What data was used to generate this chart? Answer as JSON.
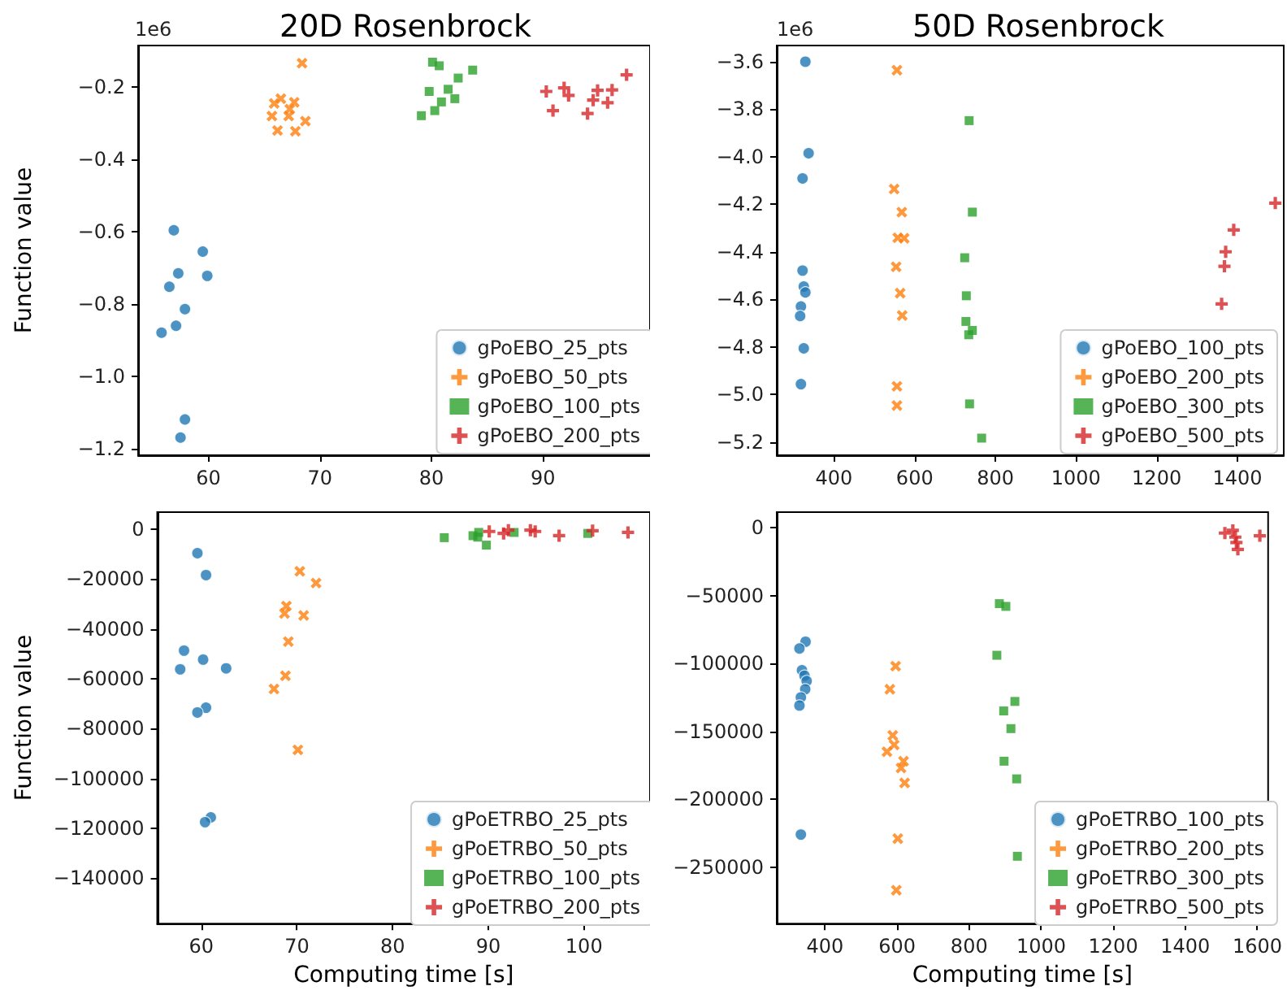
{
  "chart_data": [
    {
      "type": "scatter",
      "title": "20D Rosenbrock",
      "ylabel": "Function value",
      "annotations": [
        "1e6"
      ],
      "grid": false,
      "legend": "bottom right",
      "xlim": [
        53.7,
        99.6
      ],
      "xticks": [
        60,
        70,
        80,
        90
      ],
      "ylim": [
        -1.219,
        -0.086
      ],
      "yticks": [
        {
          "value": -1.2,
          "label": "−1.2"
        },
        {
          "value": -1.0,
          "label": "−1.0"
        },
        {
          "value": -0.8,
          "label": "−0.8"
        },
        {
          "value": -0.6,
          "label": "−0.6"
        },
        {
          "value": -0.4,
          "label": "−0.4"
        },
        {
          "value": -0.2,
          "label": "−0.2"
        }
      ],
      "series": [
        {
          "name": "gPoEBO_25_pts",
          "color": "#1f77b4",
          "marker": "circle",
          "x": [
            56.9,
            59.5,
            57.3,
            59.9,
            56.5,
            57.9,
            57.1,
            55.8,
            57.9,
            57.5
          ],
          "values": [
            -0.597,
            -0.656,
            -0.716,
            -0.723,
            -0.753,
            -0.815,
            -0.861,
            -0.88,
            -1.12,
            -1.17
          ]
        },
        {
          "name": "gPoEBO_50_pts",
          "color": "#ff7f0e",
          "marker": "x",
          "x": [
            68.4,
            66.5,
            65.9,
            67.7,
            67.3,
            65.7,
            67.2,
            68.7,
            66.2,
            67.8
          ],
          "values": [
            -0.135,
            -0.233,
            -0.246,
            -0.243,
            -0.262,
            -0.281,
            -0.281,
            -0.295,
            -0.321,
            -0.323
          ]
        },
        {
          "name": "gPoEBO_100_pts",
          "color": "#2ca02c",
          "marker": "square",
          "x": [
            80.1,
            80.7,
            83.7,
            82.4,
            79.8,
            81.5,
            82.1,
            80.9,
            80.3,
            79.1
          ],
          "values": [
            -0.132,
            -0.142,
            -0.154,
            -0.176,
            -0.213,
            -0.207,
            -0.233,
            -0.242,
            -0.266,
            -0.28
          ]
        },
        {
          "name": "gPoEBO_200_pts",
          "color": "#d62728",
          "marker": "cross",
          "x": [
            97.5,
            90.3,
            91.9,
            92.3,
            94.9,
            96.2,
            94.5,
            95.8,
            90.9,
            94.0
          ],
          "values": [
            -0.167,
            -0.213,
            -0.203,
            -0.224,
            -0.21,
            -0.209,
            -0.237,
            -0.244,
            -0.266,
            -0.274
          ]
        }
      ]
    },
    {
      "type": "scatter",
      "title": "50D Rosenbrock",
      "annotations": [
        "1e6"
      ],
      "grid": false,
      "legend": "bottom right",
      "xlim": [
        258,
        1515
      ],
      "xticks": [
        400,
        600,
        800,
        1000,
        1200,
        1400
      ],
      "ylim": [
        -5.256,
        -3.532
      ],
      "yticks": [
        {
          "value": -5.2,
          "label": "−5.2"
        },
        {
          "value": -5.0,
          "label": "−5.0"
        },
        {
          "value": -4.8,
          "label": "−4.8"
        },
        {
          "value": -4.6,
          "label": "−4.6"
        },
        {
          "value": -4.4,
          "label": "−4.4"
        },
        {
          "value": -4.2,
          "label": "−4.2"
        },
        {
          "value": -4.0,
          "label": "−4.0"
        },
        {
          "value": -3.8,
          "label": "−3.8"
        },
        {
          "value": -3.6,
          "label": "−3.6"
        }
      ],
      "series": [
        {
          "name": "gPoEBO_100_pts",
          "color": "#1f77b4",
          "marker": "circle",
          "x": [
            329,
            337,
            322,
            322,
            325,
            329,
            318,
            316,
            325,
            318
          ],
          "values": [
            -3.6,
            -3.985,
            -4.091,
            -4.479,
            -4.546,
            -4.571,
            -4.63,
            -4.67,
            -4.806,
            -4.957
          ]
        },
        {
          "name": "gPoEBO_200_pts",
          "color": "#ff7f0e",
          "marker": "x",
          "x": [
            556,
            549,
            568,
            558,
            574,
            554,
            564,
            569,
            556,
            556
          ],
          "values": [
            -3.636,
            -4.136,
            -4.233,
            -4.341,
            -4.343,
            -4.463,
            -4.574,
            -4.668,
            -4.966,
            -5.047
          ]
        },
        {
          "name": "gPoEBO_300_pts",
          "color": "#2ca02c",
          "marker": "square",
          "x": [
            735,
            743,
            724,
            728,
            727,
            743,
            734,
            736,
            766
          ],
          "values": [
            -3.848,
            -4.233,
            -4.425,
            -4.585,
            -4.693,
            -4.731,
            -4.749,
            -5.04,
            -5.184
          ]
        },
        {
          "name": "gPoEBO_500_pts",
          "color": "#d62728",
          "marker": "cross",
          "x": [
            1494,
            1391,
            1371,
            1368,
            1361
          ],
          "values": [
            -4.195,
            -4.308,
            -4.4,
            -4.461,
            -4.619
          ]
        }
      ]
    },
    {
      "type": "scatter",
      "xlabel": "Computing time [s]",
      "ylabel": "Function value",
      "grid": false,
      "legend": "bottom right",
      "xlim": [
        55.4,
        106.9
      ],
      "xticks": [
        60,
        70,
        80,
        90,
        100
      ],
      "ylim": [
        -158200,
        6840
      ],
      "yticks": [
        {
          "value": -140000,
          "label": "−140000"
        },
        {
          "value": -120000,
          "label": "−120000"
        },
        {
          "value": -100000,
          "label": "−100000"
        },
        {
          "value": -80000,
          "label": "−80000"
        },
        {
          "value": -60000,
          "label": "−60000"
        },
        {
          "value": -40000,
          "label": "−40000"
        },
        {
          "value": -20000,
          "label": "−20000"
        },
        0
      ],
      "series": [
        {
          "name": "gPoETRBO_25_pts",
          "color": "#1f77b4",
          "marker": "circle",
          "x": [
            59.6,
            60.5,
            58.2,
            60.2,
            62.6,
            57.8,
            60.5,
            59.6,
            61.0,
            60.4
          ],
          "values": [
            -9600,
            -18400,
            -48700,
            -52300,
            -55800,
            -56200,
            -71600,
            -73500,
            -115600,
            -117500
          ]
        },
        {
          "name": "gPoETRBO_50_pts",
          "color": "#ff7f0e",
          "marker": "x",
          "x": [
            70.3,
            72.0,
            68.9,
            68.7,
            70.7,
            69.1,
            68.8,
            67.6,
            70.1
          ],
          "values": [
            -16900,
            -21600,
            -30800,
            -33800,
            -34600,
            -45100,
            -58800,
            -64100,
            -88500
          ]
        },
        {
          "name": "gPoETRBO_100_pts",
          "color": "#2ca02c",
          "marker": "square",
          "x": [
            85.4,
            88.4,
            89.0,
            88.9,
            89.8,
            92.7,
            100.4
          ],
          "values": [
            -3400,
            -2600,
            -1300,
            -3200,
            -6400,
            -1300,
            -1700
          ]
        },
        {
          "name": "gPoETRBO_200_pts",
          "color": "#d62728",
          "marker": "cross",
          "x": [
            90.1,
            91.6,
            94.4,
            94.9,
            97.4,
            100.9,
            104.6,
            92.1
          ],
          "values": [
            -900,
            -1700,
            -400,
            -900,
            -2600,
            -600,
            -1300,
            -400
          ]
        }
      ]
    },
    {
      "type": "scatter",
      "xlabel": "Computing time [s]",
      "grid": false,
      "legend": "bottom right",
      "xlim": [
        266,
        1630
      ],
      "xticks": [
        400,
        600,
        800,
        1000,
        1200,
        1400,
        1600
      ],
      "ylim": [
        -291600,
        11400
      ],
      "yticks": [
        {
          "value": -250000,
          "label": "−250000"
        },
        {
          "value": -200000,
          "label": "−200000"
        },
        {
          "value": -150000,
          "label": "−150000"
        },
        {
          "value": -100000,
          "label": "−100000"
        },
        {
          "value": -50000,
          "label": "−50000"
        },
        0
      ],
      "series": [
        {
          "name": "gPoETRBO_100_pts",
          "color": "#1f77b4",
          "marker": "circle",
          "x": [
            346,
            329,
            336,
            343,
            349,
            345,
            333,
            329,
            333
          ],
          "values": [
            -84000,
            -89000,
            -105000,
            -109000,
            -113000,
            -119000,
            -125000,
            -131000,
            -226000
          ]
        },
        {
          "name": "gPoETRBO_200_pts",
          "color": "#ff7f0e",
          "marker": "x",
          "x": [
            596,
            580,
            588,
            592,
            572,
            618,
            611,
            621,
            602,
            598
          ],
          "values": [
            -102000,
            -119000,
            -153000,
            -160000,
            -165000,
            -172000,
            -177000,
            -188000,
            -229000,
            -267000
          ]
        },
        {
          "name": "gPoETRBO_300_pts",
          "color": "#2ca02c",
          "marker": "square",
          "x": [
            884,
            902,
            877,
            927,
            896,
            916,
            897,
            932,
            934
          ],
          "values": [
            -56000,
            -58000,
            -94000,
            -128000,
            -135000,
            -148000,
            -172000,
            -185000,
            -242000
          ]
        },
        {
          "name": "gPoETRBO_500_pts",
          "color": "#d62728",
          "marker": "cross",
          "x": [
            1510,
            1532,
            1539,
            1542,
            1546,
            1607
          ],
          "values": [
            -4000,
            -2000,
            -7000,
            -11000,
            -16000,
            -6000
          ]
        }
      ]
    }
  ]
}
